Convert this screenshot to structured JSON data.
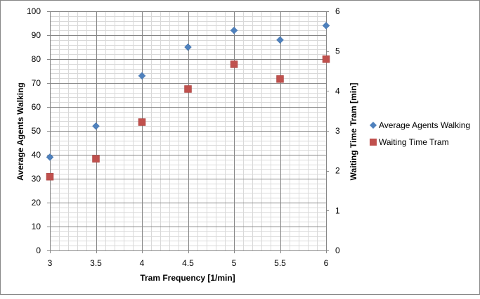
{
  "chart_data": {
    "type": "scatter",
    "title": "",
    "xlabel": "Tram Frequency [1/min]",
    "ylabel": "Average Agents Walking",
    "y2label": "Waiting Time Tram [min]",
    "xlim": [
      3,
      6
    ],
    "ylim": [
      0,
      100
    ],
    "y2lim": [
      0,
      6
    ],
    "x_ticks": [
      "3",
      "3.5",
      "4",
      "4.5",
      "5",
      "5.5",
      "6"
    ],
    "y_ticks": [
      "0",
      "10",
      "20",
      "30",
      "40",
      "50",
      "60",
      "70",
      "80",
      "90",
      "100"
    ],
    "y2_ticks": [
      "0",
      "1",
      "2",
      "3",
      "4",
      "5",
      "6"
    ],
    "grid": true,
    "legend_position": "right",
    "series": [
      {
        "name": "Average Agents Walking",
        "axis": "left",
        "marker": "diamond",
        "color": "#4f81bd",
        "x": [
          3,
          3.5,
          4,
          4.5,
          5,
          5.5,
          6
        ],
        "y": [
          39,
          52,
          73,
          85,
          92,
          88,
          94
        ]
      },
      {
        "name": "Waiting Time Tram",
        "axis": "right",
        "marker": "square",
        "color": "#c0504d",
        "x": [
          3,
          3.5,
          4,
          4.5,
          5,
          5.5,
          6
        ],
        "y": [
          1.85,
          2.3,
          3.22,
          4.05,
          4.67,
          4.3,
          4.8
        ]
      }
    ]
  }
}
